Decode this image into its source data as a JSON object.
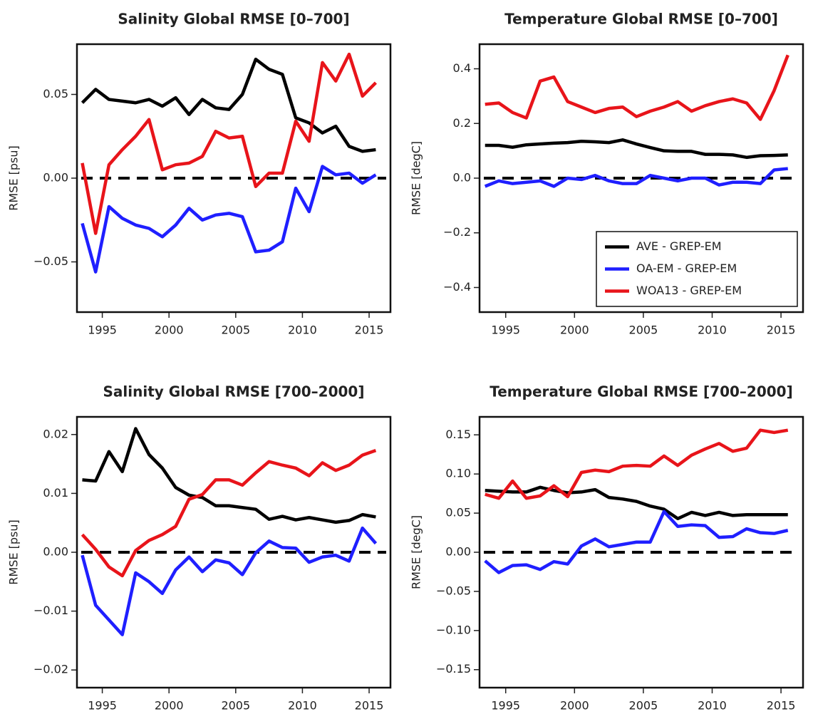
{
  "chart_data": [
    {
      "type": "line",
      "title": "Salinity Global RMSE [0–700]",
      "ylabel": "RMSE [psu]",
      "x": [
        1993.5,
        1994.5,
        1995.5,
        1996.5,
        1997.5,
        1998.5,
        1999.5,
        2000.5,
        2001.5,
        2002.5,
        2003.5,
        2004.5,
        2005.5,
        2006.5,
        2007.5,
        2008.5,
        2009.5,
        2010.5,
        2011.5,
        2012.5,
        2013.5,
        2014.5,
        2015.5
      ],
      "xlim": [
        1993.1,
        2016.6
      ],
      "xticks": [
        1995,
        2000,
        2005,
        2010,
        2015
      ],
      "ylim": [
        -0.08,
        0.08
      ],
      "yticks": [
        {
          "value": -0.05,
          "label": "−0.05"
        },
        {
          "value": 0,
          "label": "0.00"
        },
        0.05
      ],
      "hline": 0,
      "series": [
        {
          "color": "#000000",
          "values": [
            0.045,
            0.053,
            0.047,
            0.046,
            0.045,
            0.047,
            0.043,
            0.048,
            0.038,
            0.047,
            0.042,
            0.041,
            0.05,
            0.071,
            0.065,
            0.062,
            0.036,
            0.033,
            0.027,
            0.031,
            0.019,
            0.016,
            0.017
          ]
        },
        {
          "color": "#1f1fff",
          "values": [
            -0.027,
            -0.056,
            -0.017,
            -0.024,
            -0.028,
            -0.03,
            -0.035,
            -0.028,
            -0.018,
            -0.025,
            -0.022,
            -0.021,
            -0.023,
            -0.044,
            -0.043,
            -0.038,
            -0.006,
            -0.02,
            0.007,
            0.002,
            0.003,
            -0.003,
            0.002
          ]
        },
        {
          "color": "#e8141a",
          "values": [
            0.009,
            -0.033,
            0.008,
            0.017,
            0.025,
            0.035,
            0.005,
            0.008,
            0.009,
            0.013,
            0.028,
            0.024,
            0.025,
            -0.005,
            0.003,
            0.003,
            0.034,
            0.022,
            0.069,
            0.058,
            0.074,
            0.049,
            0.057
          ]
        }
      ]
    },
    {
      "type": "line",
      "title": "Temperature Global RMSE [0–700]",
      "ylabel": "RMSE [degC]",
      "x": [
        1993.5,
        1994.5,
        1995.5,
        1996.5,
        1997.5,
        1998.5,
        1999.5,
        2000.5,
        2001.5,
        2002.5,
        2003.5,
        2004.5,
        2005.5,
        2006.5,
        2007.5,
        2008.5,
        2009.5,
        2010.5,
        2011.5,
        2012.5,
        2013.5,
        2014.5,
        2015.5
      ],
      "xlim": [
        1993.1,
        2016.6
      ],
      "xticks": [
        1995,
        2000,
        2005,
        2010,
        2015
      ],
      "ylim": [
        -0.49,
        0.49
      ],
      "yticks": [
        {
          "value": -0.4,
          "label": "−0.4"
        },
        {
          "value": -0.2,
          "label": "−0.2"
        },
        {
          "value": 0,
          "label": "0.0"
        },
        0.2,
        0.4
      ],
      "hline": 0,
      "legend": "bottom-right",
      "series": [
        {
          "name": "AVE - GREP-EM",
          "color": "#000000",
          "values": [
            0.12,
            0.12,
            0.113,
            0.122,
            0.125,
            0.128,
            0.13,
            0.135,
            0.133,
            0.13,
            0.14,
            0.125,
            0.112,
            0.1,
            0.098,
            0.098,
            0.087,
            0.087,
            0.085,
            0.076,
            0.082,
            0.083,
            0.085
          ]
        },
        {
          "name": "OA-EM - GREP-EM",
          "color": "#1f1fff",
          "values": [
            -0.03,
            -0.01,
            -0.02,
            -0.015,
            -0.01,
            -0.03,
            0.0,
            -0.005,
            0.01,
            -0.01,
            -0.02,
            -0.02,
            0.01,
            0.0,
            -0.01,
            0.0,
            0.0,
            -0.025,
            -0.015,
            -0.015,
            -0.02,
            0.03,
            0.035
          ]
        },
        {
          "name": "WOA13 - GREP-EM",
          "color": "#e8141a",
          "values": [
            0.27,
            0.275,
            0.24,
            0.22,
            0.355,
            0.37,
            0.28,
            0.26,
            0.24,
            0.255,
            0.26,
            0.225,
            0.245,
            0.26,
            0.28,
            0.245,
            0.265,
            0.28,
            0.29,
            0.275,
            0.215,
            0.32,
            0.45
          ]
        }
      ]
    },
    {
      "type": "line",
      "title": "Salinity Global RMSE [700–2000]",
      "ylabel": "RMSE [psu]",
      "x": [
        1993.5,
        1994.5,
        1995.5,
        1996.5,
        1997.5,
        1998.5,
        1999.5,
        2000.5,
        2001.5,
        2002.5,
        2003.5,
        2004.5,
        2005.5,
        2006.5,
        2007.5,
        2008.5,
        2009.5,
        2010.5,
        2011.5,
        2012.5,
        2013.5,
        2014.5,
        2015.5
      ],
      "xlim": [
        1993.1,
        2016.6
      ],
      "xticks": [
        1995,
        2000,
        2005,
        2010,
        2015
      ],
      "ylim": [
        -0.023,
        0.023
      ],
      "yticks": [
        {
          "value": -0.02,
          "label": "−0.02"
        },
        {
          "value": -0.01,
          "label": "−0.01"
        },
        {
          "value": 0,
          "label": "0.00"
        },
        0.01,
        0.02
      ],
      "hline": 0,
      "series": [
        {
          "color": "#000000",
          "values": [
            0.0123,
            0.0121,
            0.0171,
            0.0137,
            0.021,
            0.0166,
            0.0143,
            0.011,
            0.0097,
            0.0093,
            0.0079,
            0.0079,
            0.0076,
            0.0073,
            0.0056,
            0.0061,
            0.0055,
            0.0059,
            0.0055,
            0.0051,
            0.0054,
            0.0064,
            0.006
          ]
        },
        {
          "color": "#1f1fff",
          "values": [
            -0.0005,
            -0.009,
            -0.0115,
            -0.014,
            -0.0035,
            -0.005,
            -0.007,
            -0.003,
            -0.0008,
            -0.0033,
            -0.0013,
            -0.0018,
            -0.0038,
            -0.0001,
            0.0019,
            0.0008,
            0.0007,
            -0.0017,
            -0.0008,
            -0.0005,
            -0.0015,
            0.0041,
            0.0015
          ]
        },
        {
          "color": "#e8141a",
          "values": [
            0.003,
            0.0005,
            -0.0025,
            -0.004,
            0.0003,
            0.002,
            0.003,
            0.0044,
            0.009,
            0.0098,
            0.0123,
            0.0123,
            0.0114,
            0.0135,
            0.0154,
            0.0148,
            0.0143,
            0.013,
            0.0152,
            0.0139,
            0.0148,
            0.0165,
            0.0173
          ]
        }
      ]
    },
    {
      "type": "line",
      "title": "Temperature Global RMSE [700–2000]",
      "ylabel": "RMSE [degC]",
      "x": [
        1993.5,
        1994.5,
        1995.5,
        1996.5,
        1997.5,
        1998.5,
        1999.5,
        2000.5,
        2001.5,
        2002.5,
        2003.5,
        2004.5,
        2005.5,
        2006.5,
        2007.5,
        2008.5,
        2009.5,
        2010.5,
        2011.5,
        2012.5,
        2013.5,
        2014.5,
        2015.5
      ],
      "xlim": [
        1993.1,
        2016.6
      ],
      "xticks": [
        1995,
        2000,
        2005,
        2010,
        2015
      ],
      "ylim": [
        -0.173,
        0.173
      ],
      "yticks": [
        {
          "value": -0.15,
          "label": "−0.15"
        },
        {
          "value": -0.1,
          "label": "−0.10"
        },
        {
          "value": -0.05,
          "label": "−0.05"
        },
        {
          "value": 0,
          "label": "0.00"
        },
        0.05,
        {
          "value": 0.1,
          "label": "0.10"
        },
        0.15
      ],
      "hline": 0,
      "series": [
        {
          "color": "#000000",
          "values": [
            0.079,
            0.078,
            0.077,
            0.077,
            0.083,
            0.079,
            0.076,
            0.077,
            0.08,
            0.07,
            0.068,
            0.065,
            0.059,
            0.055,
            0.043,
            0.051,
            0.047,
            0.051,
            0.047,
            0.048,
            0.048,
            0.048,
            0.048
          ]
        },
        {
          "color": "#1f1fff",
          "values": [
            -0.011,
            -0.026,
            -0.017,
            -0.016,
            -0.022,
            -0.012,
            -0.015,
            0.008,
            0.017,
            0.007,
            0.01,
            0.013,
            0.013,
            0.052,
            0.033,
            0.035,
            0.034,
            0.019,
            0.02,
            0.03,
            0.025,
            0.024,
            0.028
          ]
        },
        {
          "color": "#e8141a",
          "values": [
            0.074,
            0.069,
            0.091,
            0.069,
            0.072,
            0.085,
            0.071,
            0.102,
            0.105,
            0.103,
            0.11,
            0.111,
            0.11,
            0.123,
            0.111,
            0.124,
            0.132,
            0.139,
            0.129,
            0.133,
            0.156,
            0.153,
            0.156
          ]
        }
      ]
    }
  ]
}
